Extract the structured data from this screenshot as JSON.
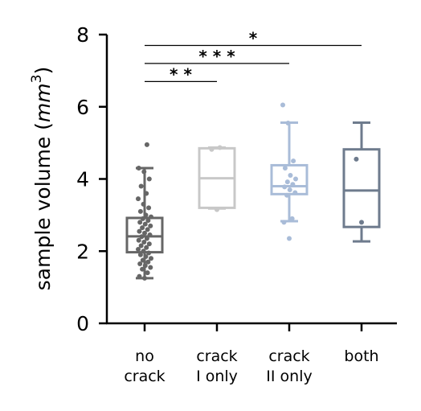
{
  "chart_data": {
    "type": "box",
    "ylabel_main": "sample volume (",
    "ylabel_unit": "mm",
    "ylabel_exp": "3",
    "ylabel_close": ")",
    "ylim": [
      0,
      8
    ],
    "yticks": [
      "0",
      "2",
      "4",
      "6",
      "8"
    ],
    "grid": false,
    "categories": [
      {
        "line1": "no",
        "line2": "crack",
        "color": "#666666"
      },
      {
        "line1": "crack",
        "line2": "I only",
        "color": "#c8c8c8"
      },
      {
        "line1": "crack",
        "line2": "II only",
        "color": "#a9bcd8"
      },
      {
        "line1": "both",
        "line2": "",
        "color": "#6e7b8d"
      }
    ],
    "boxes": [
      {
        "whislo": 1.25,
        "q1": 1.97,
        "med": 2.41,
        "q3": 2.92,
        "whishi": 4.3,
        "points": [
          1.25,
          1.3,
          1.4,
          1.5,
          1.55,
          1.6,
          1.65,
          1.7,
          1.75,
          1.8,
          1.85,
          1.9,
          1.95,
          2.0,
          2.05,
          2.1,
          2.15,
          2.2,
          2.25,
          2.3,
          2.35,
          2.4,
          2.45,
          2.5,
          2.55,
          2.6,
          2.65,
          2.7,
          2.75,
          2.8,
          2.85,
          2.9,
          2.95,
          3.0,
          3.1,
          3.2,
          3.3,
          3.45,
          3.6,
          3.8,
          4.0,
          4.2,
          4.3,
          4.95
        ]
      },
      {
        "whislo": 3.18,
        "q1": 3.2,
        "med": 4.02,
        "q3": 4.85,
        "whishi": 4.87,
        "points": [
          3.15,
          4.82,
          4.87
        ]
      },
      {
        "whislo": 2.83,
        "q1": 3.58,
        "med": 3.8,
        "q3": 4.38,
        "whishi": 5.56,
        "points": [
          2.35,
          2.8,
          2.9,
          3.55,
          3.62,
          3.7,
          3.78,
          3.85,
          3.92,
          4.0,
          4.1,
          4.3,
          4.5,
          5.55,
          6.05
        ]
      },
      {
        "whislo": 2.27,
        "q1": 2.67,
        "med": 3.68,
        "q3": 4.82,
        "whishi": 5.56,
        "points": [
          2.8,
          4.55
        ]
      }
    ],
    "significance": [
      {
        "from": 0,
        "to": 1,
        "label": "* *",
        "y": 6.7
      },
      {
        "from": 0,
        "to": 2,
        "label": "* * *",
        "y": 7.2
      },
      {
        "from": 0,
        "to": 3,
        "label": "*",
        "y": 7.7
      }
    ]
  }
}
